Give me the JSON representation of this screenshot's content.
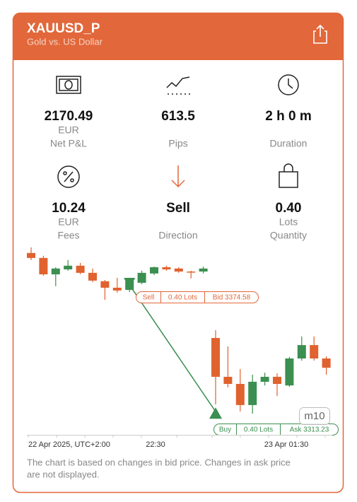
{
  "header": {
    "title": "XAUUSD_P",
    "subtitle": "Gold vs. US Dollar"
  },
  "stats": [
    {
      "value": "2170.49",
      "unit": "EUR",
      "label": "Net P&L"
    },
    {
      "value": "613.5",
      "label": "Pips"
    },
    {
      "value": "2 h 0 m",
      "label": "Duration"
    },
    {
      "value": "10.24",
      "unit": "EUR",
      "label": "Fees"
    },
    {
      "value": "Sell",
      "label": "Direction"
    },
    {
      "value": "0.40",
      "unit": "Lots",
      "label": "Quantity"
    }
  ],
  "chart_data": {
    "type": "candlestick",
    "ylim": [
      3305.1,
      3393.6
    ],
    "up_color": "#3b8f50",
    "down_color": "#e0622f",
    "candles": [
      {
        "open": 3389.4,
        "high": 3392.0,
        "low": 3386.1,
        "close": 3387.1
      },
      {
        "open": 3387.1,
        "high": 3388.1,
        "low": 3378.9,
        "close": 3379.5
      },
      {
        "open": 3379.5,
        "high": 3382.8,
        "low": 3374.0,
        "close": 3382.2
      },
      {
        "open": 3381.8,
        "high": 3386.1,
        "low": 3381.2,
        "close": 3383.5
      },
      {
        "open": 3383.5,
        "high": 3384.8,
        "low": 3379.5,
        "close": 3380.2
      },
      {
        "open": 3380.2,
        "high": 3382.2,
        "low": 3375.9,
        "close": 3376.6
      },
      {
        "open": 3376.3,
        "high": 3376.9,
        "low": 3367.7,
        "close": 3373.3
      },
      {
        "open": 3373.3,
        "high": 3377.9,
        "low": 3371.0,
        "close": 3372.0
      },
      {
        "open": 3372.3,
        "high": 3377.9,
        "low": 3371.3,
        "close": 3376.3
      },
      {
        "open": 3375.6,
        "high": 3381.2,
        "low": 3374.9,
        "close": 3380.2
      },
      {
        "open": 3379.9,
        "high": 3383.1,
        "low": 3379.2,
        "close": 3382.8
      },
      {
        "open": 3382.8,
        "high": 3383.5,
        "low": 3381.2,
        "close": 3381.8
      },
      {
        "open": 3382.2,
        "high": 3382.8,
        "low": 3380.2,
        "close": 3380.8
      },
      {
        "open": 3380.8,
        "high": 3381.2,
        "low": 3377.6,
        "close": 3380.5
      },
      {
        "open": 3380.8,
        "high": 3383.1,
        "low": 3379.9,
        "close": 3382.2
      },
      {
        "open": 3350.0,
        "high": 3353.6,
        "low": 3319.2,
        "close": 3332.0
      },
      {
        "open": 3332.0,
        "high": 3346.1,
        "low": 3327.1,
        "close": 3328.7
      },
      {
        "open": 3328.7,
        "high": 3335.6,
        "low": 3315.9,
        "close": 3318.9
      },
      {
        "open": 3318.9,
        "high": 3333.0,
        "low": 3314.9,
        "close": 3329.7
      },
      {
        "open": 3329.7,
        "high": 3333.9,
        "low": 3328.0,
        "close": 3332.0
      },
      {
        "open": 3332.0,
        "high": 3333.6,
        "low": 3323.1,
        "close": 3328.7
      },
      {
        "open": 3328.0,
        "high": 3341.2,
        "low": 3327.4,
        "close": 3340.5
      },
      {
        "open": 3340.5,
        "high": 3350.7,
        "low": 3339.5,
        "close": 3346.7
      },
      {
        "open": 3346.7,
        "high": 3350.7,
        "low": 3339.5,
        "close": 3340.5
      },
      {
        "open": 3340.5,
        "high": 3341.5,
        "low": 3333.0,
        "close": 3336.2
      }
    ],
    "sell": {
      "side": "Sell",
      "lots": "0.40 Lots",
      "price_label": "Bid 3374.58",
      "price": 3374.58
    },
    "buy": {
      "side": "Buy",
      "lots": "0.40 Lots",
      "price_label": "Ask 3313.23",
      "price": 3313.23
    },
    "x_labels": [
      "22 Apr 2025, UTC+2:00",
      "22:30",
      "23 Apr 01:30"
    ],
    "timeframe": "m10"
  },
  "note": [
    "The chart is based on changes in bid price. Changes in ask price",
    "are not displayed."
  ]
}
